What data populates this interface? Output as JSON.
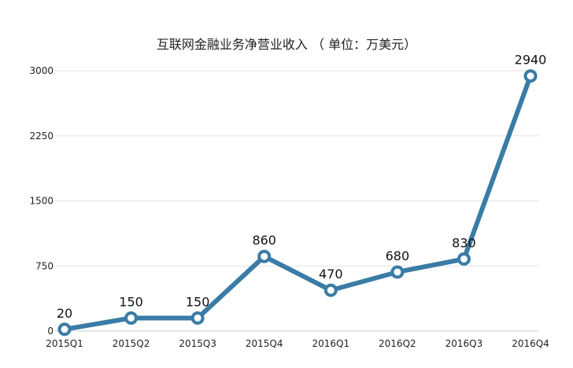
{
  "chart_data": {
    "type": "line",
    "title": "互联网金融业务净营业收入 （ 单位：万美元）",
    "categories": [
      "2015Q1",
      "2015Q2",
      "2015Q3",
      "2015Q4",
      "2016Q1",
      "2016Q2",
      "2016Q3",
      "2016Q4"
    ],
    "series": [
      {
        "values": [
          20,
          150,
          150,
          860,
          470,
          680,
          830,
          2940
        ]
      }
    ],
    "data_labels": [
      "20",
      "150",
      "150",
      "860",
      "470",
      "680",
      "830",
      "2940"
    ],
    "y_ticks": [
      0,
      750,
      1500,
      2250,
      3000
    ],
    "y_tick_labels": [
      "0",
      "750",
      "1500",
      "2250",
      "3000"
    ],
    "ylim": [
      0,
      3000
    ],
    "grid": true,
    "line_color": "#3a7ca5",
    "marker_fill": "#ffffff"
  }
}
